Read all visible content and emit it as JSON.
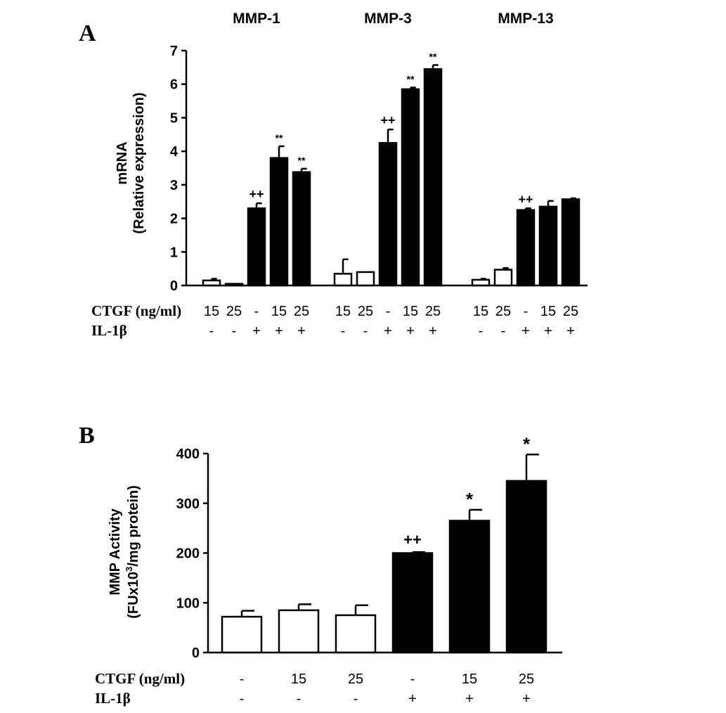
{
  "chart_data": [
    {
      "panel_label": "A",
      "type": "bar",
      "ylabel_line1": "mRNA",
      "ylabel_line2": "(Relative expression)",
      "ylim": [
        0,
        7
      ],
      "yticks": [
        "0",
        "1",
        "2",
        "3",
        "4",
        "5",
        "6",
        "7"
      ],
      "row_labels": {
        "ctgf": "CTGF (ng/ml)",
        "il1b": "IL-1β"
      },
      "groups": [
        {
          "name": "MMP-1",
          "bars": [
            {
              "ctgf": "15",
              "il1b": "-",
              "value": 0.15,
              "error": 0.05,
              "fill": "white",
              "annotation": ""
            },
            {
              "ctgf": "25",
              "il1b": "-",
              "value": 0.05,
              "error": 0.0,
              "fill": "white",
              "annotation": ""
            },
            {
              "ctgf": "-",
              "il1b": "+",
              "value": 2.3,
              "error": 0.15,
              "fill": "black",
              "annotation": "++"
            },
            {
              "ctgf": "15",
              "il1b": "+",
              "value": 3.8,
              "error": 0.35,
              "fill": "black",
              "annotation": "**"
            },
            {
              "ctgf": "25",
              "il1b": "+",
              "value": 3.38,
              "error": 0.1,
              "fill": "black",
              "annotation": "**"
            }
          ]
        },
        {
          "name": "MMP-3",
          "bars": [
            {
              "ctgf": "15",
              "il1b": "-",
              "value": 0.35,
              "error": 0.43,
              "fill": "white",
              "annotation": ""
            },
            {
              "ctgf": "25",
              "il1b": "-",
              "value": 0.4,
              "error": 0.0,
              "fill": "white",
              "annotation": ""
            },
            {
              "ctgf": "-",
              "il1b": "+",
              "value": 4.25,
              "error": 0.4,
              "fill": "black",
              "annotation": "++"
            },
            {
              "ctgf": "15",
              "il1b": "+",
              "value": 5.85,
              "error": 0.05,
              "fill": "black",
              "annotation": "**"
            },
            {
              "ctgf": "25",
              "il1b": "+",
              "value": 6.45,
              "error": 0.12,
              "fill": "black",
              "annotation": "**"
            }
          ]
        },
        {
          "name": "MMP-13",
          "bars": [
            {
              "ctgf": "15",
              "il1b": "-",
              "value": 0.17,
              "error": 0.03,
              "fill": "white",
              "annotation": ""
            },
            {
              "ctgf": "25",
              "il1b": "-",
              "value": 0.47,
              "error": 0.05,
              "fill": "white",
              "annotation": ""
            },
            {
              "ctgf": "-",
              "il1b": "+",
              "value": 2.25,
              "error": 0.05,
              "fill": "black",
              "annotation": "++"
            },
            {
              "ctgf": "15",
              "il1b": "+",
              "value": 2.35,
              "error": 0.17,
              "fill": "black",
              "annotation": ""
            },
            {
              "ctgf": "25",
              "il1b": "+",
              "value": 2.57,
              "error": 0.03,
              "fill": "black",
              "annotation": ""
            }
          ]
        }
      ]
    },
    {
      "panel_label": "B",
      "type": "bar",
      "ylabel_line1": "MMP Activity",
      "ylabel_line2_prefix": "(FUx10",
      "ylabel_line2_sup": "3",
      "ylabel_line2_suffix": "/mg protein)",
      "ylim": [
        0,
        400
      ],
      "yticks": [
        "0",
        "100",
        "200",
        "300",
        "400"
      ],
      "row_labels": {
        "ctgf": "CTGF (ng/ml)",
        "il1b": "IL-1β"
      },
      "bars": [
        {
          "ctgf": "-",
          "il1b": "-",
          "value": 72,
          "error": 12,
          "fill": "white",
          "annotation": ""
        },
        {
          "ctgf": "15",
          "il1b": "-",
          "value": 85,
          "error": 12,
          "fill": "white",
          "annotation": ""
        },
        {
          "ctgf": "25",
          "il1b": "-",
          "value": 75,
          "error": 20,
          "fill": "white",
          "annotation": ""
        },
        {
          "ctgf": "-",
          "il1b": "+",
          "value": 200,
          "error": 2,
          "fill": "black",
          "annotation": "++"
        },
        {
          "ctgf": "15",
          "il1b": "+",
          "value": 265,
          "error": 22,
          "fill": "black",
          "annotation": "*"
        },
        {
          "ctgf": "25",
          "il1b": "+",
          "value": 345,
          "error": 53,
          "fill": "black",
          "annotation": "*"
        }
      ]
    }
  ]
}
